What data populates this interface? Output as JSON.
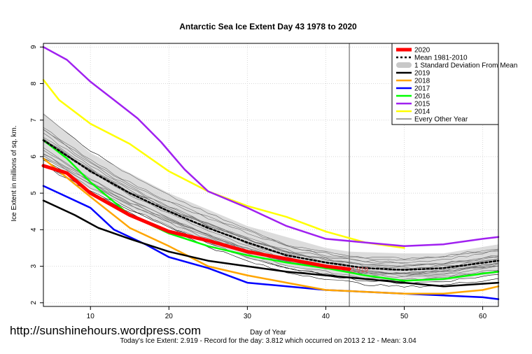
{
  "watermark": "http://sunshinehours.wordpress.com",
  "footer": "Today's Ice Extent: 2.919  - Record for the day: 3.812 which occurred on 2013 2 12  - Mean: 3.04",
  "chart_data": {
    "type": "line",
    "title": "Antarctic Sea Ice Extent Day 43 1978 to 2020",
    "xlabel": "Day of Year",
    "ylabel": "Ice Extent in millions of sq. km.",
    "xlim": [
      4,
      62
    ],
    "ylim": [
      1.9,
      9.1
    ],
    "xticks": [
      10,
      20,
      30,
      40,
      50,
      60
    ],
    "yticks": [
      2,
      3,
      4,
      5,
      6,
      7,
      8,
      9
    ],
    "grid": true,
    "legend_position": "top-right",
    "current_day": 43,
    "current_day_label": "2.919",
    "legend": [
      {
        "label": "2020",
        "color": "#ff0000",
        "style": "thick"
      },
      {
        "label": "Mean 1981-2010",
        "color": "#000000",
        "style": "dotted"
      },
      {
        "label": "1 Standard Deviation From Mean",
        "color": "#c8c8c8",
        "style": "band"
      },
      {
        "label": "2019",
        "color": "#000000",
        "style": "solid"
      },
      {
        "label": "2018",
        "color": "#ffa500",
        "style": "solid"
      },
      {
        "label": "2017",
        "color": "#0000ff",
        "style": "solid"
      },
      {
        "label": "2016",
        "color": "#00ff00",
        "style": "solid"
      },
      {
        "label": "2015",
        "color": "#a020f0",
        "style": "solid"
      },
      {
        "label": "2014",
        "color": "#ffff00",
        "style": "solid"
      },
      {
        "label": "Every Other Year",
        "color": "#000000",
        "style": "thin"
      }
    ],
    "std_band": {
      "x": [
        4,
        10,
        20,
        30,
        40,
        43,
        50,
        55,
        62
      ],
      "upper": [
        7.2,
        6.1,
        5.0,
        4.1,
        3.5,
        3.4,
        3.35,
        3.35,
        3.6
      ],
      "lower": [
        6.0,
        5.1,
        4.1,
        3.2,
        2.8,
        2.7,
        2.6,
        2.6,
        2.8
      ]
    },
    "series": [
      {
        "name": "2020",
        "color": "#ff0000",
        "width": 5,
        "x": [
          4,
          7,
          10,
          15,
          20,
          25,
          30,
          35,
          40,
          43
        ],
        "y": [
          5.75,
          5.55,
          5.0,
          4.4,
          3.95,
          3.7,
          3.4,
          3.2,
          3.0,
          2.92
        ]
      },
      {
        "name": "Mean 1981-2010",
        "color": "#000000",
        "width": 2.5,
        "dash": "3,3",
        "x": [
          4,
          10,
          15,
          20,
          25,
          30,
          35,
          40,
          45,
          50,
          55,
          62
        ],
        "y": [
          6.45,
          5.6,
          5.0,
          4.5,
          4.05,
          3.65,
          3.3,
          3.1,
          2.95,
          2.9,
          2.95,
          3.15
        ]
      },
      {
        "name": "2019",
        "color": "#000000",
        "width": 2.5,
        "x": [
          4,
          6,
          8,
          11,
          15,
          20,
          25,
          30,
          35,
          40,
          45,
          50,
          55,
          62
        ],
        "y": [
          4.8,
          4.6,
          4.4,
          4.05,
          3.75,
          3.4,
          3.15,
          3.0,
          2.85,
          2.75,
          2.65,
          2.55,
          2.45,
          2.55
        ]
      },
      {
        "name": "2018",
        "color": "#ffa500",
        "width": 2.5,
        "x": [
          4,
          6,
          10,
          15,
          20,
          25,
          30,
          35,
          40,
          45,
          50,
          55,
          60,
          62
        ],
        "y": [
          5.95,
          5.6,
          4.9,
          4.05,
          3.55,
          3.0,
          2.75,
          2.55,
          2.35,
          2.3,
          2.25,
          2.25,
          2.35,
          2.45
        ]
      },
      {
        "name": "2017",
        "color": "#0000ff",
        "width": 2.5,
        "x": [
          4,
          6,
          10,
          13,
          17,
          20,
          25,
          30,
          35,
          40,
          45,
          50,
          55,
          60,
          62
        ],
        "y": [
          5.2,
          5.0,
          4.6,
          4.0,
          3.6,
          3.25,
          2.95,
          2.55,
          2.45,
          2.35,
          2.3,
          2.25,
          2.2,
          2.15,
          2.1
        ]
      },
      {
        "name": "2016",
        "color": "#00ff00",
        "width": 2.5,
        "x": [
          4,
          7,
          10,
          15,
          20,
          25,
          30,
          35,
          40,
          45,
          50,
          55,
          60,
          62
        ],
        "y": [
          6.45,
          5.95,
          5.3,
          4.4,
          3.9,
          3.55,
          3.3,
          3.1,
          2.95,
          2.75,
          2.6,
          2.65,
          2.8,
          2.85
        ]
      },
      {
        "name": "2015",
        "color": "#a020f0",
        "width": 2.5,
        "x": [
          4,
          7,
          10,
          13,
          16,
          19,
          22,
          25,
          30,
          35,
          40,
          45,
          50,
          55,
          60,
          62
        ],
        "y": [
          9.0,
          8.65,
          8.05,
          7.55,
          7.05,
          6.4,
          5.65,
          5.05,
          4.6,
          4.1,
          3.75,
          3.65,
          3.55,
          3.6,
          3.75,
          3.8
        ]
      },
      {
        "name": "2014",
        "color": "#ffff00",
        "width": 2.5,
        "x": [
          4,
          6,
          10,
          15,
          20,
          25,
          30,
          35,
          40,
          45,
          50
        ],
        "y": [
          8.1,
          7.55,
          6.9,
          6.35,
          5.6,
          5.05,
          4.65,
          4.35,
          3.95,
          3.65,
          3.5
        ]
      }
    ]
  }
}
